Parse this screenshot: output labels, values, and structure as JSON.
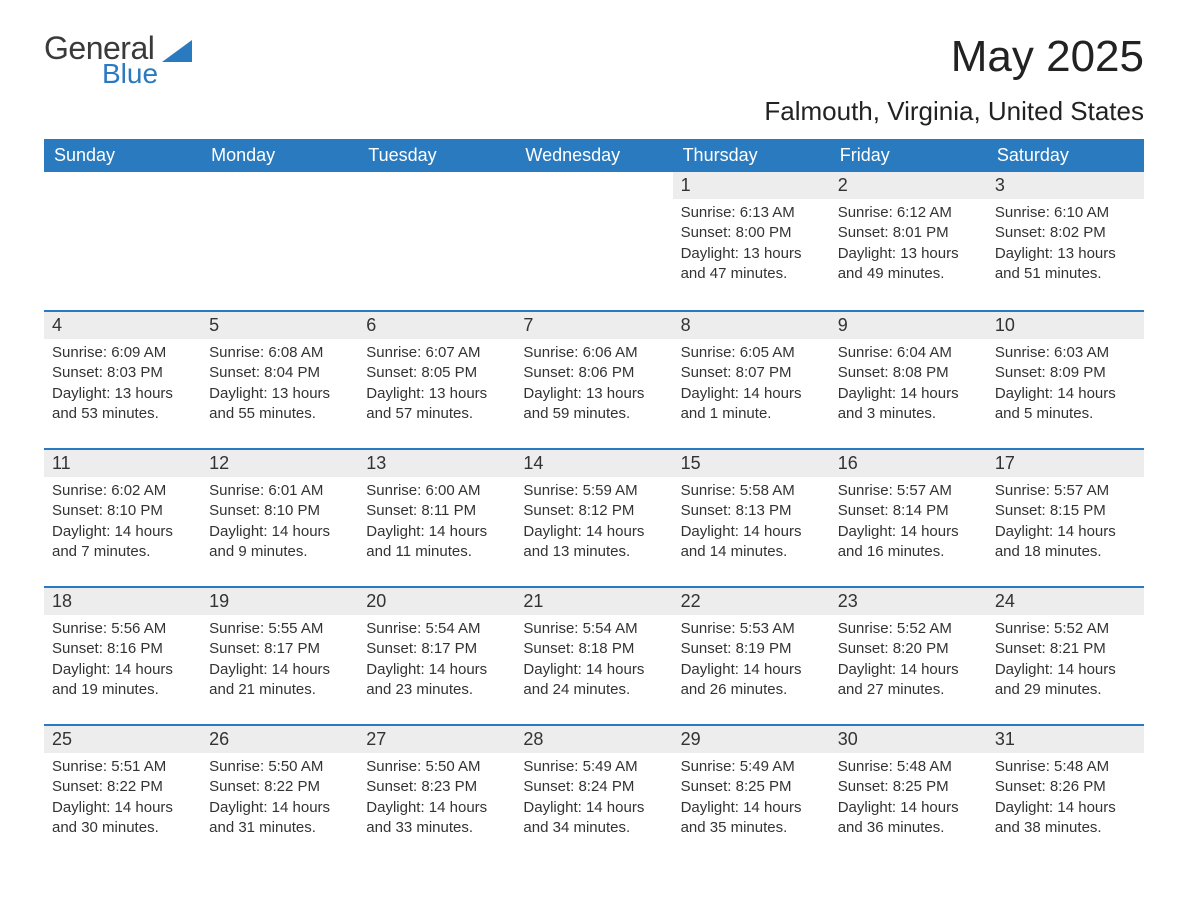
{
  "logo": {
    "word1": "General",
    "word2": "Blue"
  },
  "title": "May 2025",
  "location": "Falmouth, Virginia, United States",
  "colors": {
    "header_bg": "#2a7abf",
    "header_text": "#ffffff",
    "daynum_bg": "#ededed",
    "border_top": "#2a7abf",
    "body_bg": "#ffffff",
    "text": "#333333",
    "logo_gray": "#3a3a3a",
    "logo_blue": "#2a7abf"
  },
  "typography": {
    "title_fontsize": 44,
    "location_fontsize": 26,
    "header_fontsize": 18,
    "daynum_fontsize": 18,
    "body_fontsize": 15,
    "font_family": "Arial"
  },
  "layout": {
    "columns": 7,
    "rows": 5,
    "first_day_column": 4
  },
  "weekdays": [
    "Sunday",
    "Monday",
    "Tuesday",
    "Wednesday",
    "Thursday",
    "Friday",
    "Saturday"
  ],
  "days": [
    null,
    null,
    null,
    null,
    {
      "n": "1",
      "sunrise": "Sunrise: 6:13 AM",
      "sunset": "Sunset: 8:00 PM",
      "daylight": "Daylight: 13 hours and 47 minutes."
    },
    {
      "n": "2",
      "sunrise": "Sunrise: 6:12 AM",
      "sunset": "Sunset: 8:01 PM",
      "daylight": "Daylight: 13 hours and 49 minutes."
    },
    {
      "n": "3",
      "sunrise": "Sunrise: 6:10 AM",
      "sunset": "Sunset: 8:02 PM",
      "daylight": "Daylight: 13 hours and 51 minutes."
    },
    {
      "n": "4",
      "sunrise": "Sunrise: 6:09 AM",
      "sunset": "Sunset: 8:03 PM",
      "daylight": "Daylight: 13 hours and 53 minutes."
    },
    {
      "n": "5",
      "sunrise": "Sunrise: 6:08 AM",
      "sunset": "Sunset: 8:04 PM",
      "daylight": "Daylight: 13 hours and 55 minutes."
    },
    {
      "n": "6",
      "sunrise": "Sunrise: 6:07 AM",
      "sunset": "Sunset: 8:05 PM",
      "daylight": "Daylight: 13 hours and 57 minutes."
    },
    {
      "n": "7",
      "sunrise": "Sunrise: 6:06 AM",
      "sunset": "Sunset: 8:06 PM",
      "daylight": "Daylight: 13 hours and 59 minutes."
    },
    {
      "n": "8",
      "sunrise": "Sunrise: 6:05 AM",
      "sunset": "Sunset: 8:07 PM",
      "daylight": "Daylight: 14 hours and 1 minute."
    },
    {
      "n": "9",
      "sunrise": "Sunrise: 6:04 AM",
      "sunset": "Sunset: 8:08 PM",
      "daylight": "Daylight: 14 hours and 3 minutes."
    },
    {
      "n": "10",
      "sunrise": "Sunrise: 6:03 AM",
      "sunset": "Sunset: 8:09 PM",
      "daylight": "Daylight: 14 hours and 5 minutes."
    },
    {
      "n": "11",
      "sunrise": "Sunrise: 6:02 AM",
      "sunset": "Sunset: 8:10 PM",
      "daylight": "Daylight: 14 hours and 7 minutes."
    },
    {
      "n": "12",
      "sunrise": "Sunrise: 6:01 AM",
      "sunset": "Sunset: 8:10 PM",
      "daylight": "Daylight: 14 hours and 9 minutes."
    },
    {
      "n": "13",
      "sunrise": "Sunrise: 6:00 AM",
      "sunset": "Sunset: 8:11 PM",
      "daylight": "Daylight: 14 hours and 11 minutes."
    },
    {
      "n": "14",
      "sunrise": "Sunrise: 5:59 AM",
      "sunset": "Sunset: 8:12 PM",
      "daylight": "Daylight: 14 hours and 13 minutes."
    },
    {
      "n": "15",
      "sunrise": "Sunrise: 5:58 AM",
      "sunset": "Sunset: 8:13 PM",
      "daylight": "Daylight: 14 hours and 14 minutes."
    },
    {
      "n": "16",
      "sunrise": "Sunrise: 5:57 AM",
      "sunset": "Sunset: 8:14 PM",
      "daylight": "Daylight: 14 hours and 16 minutes."
    },
    {
      "n": "17",
      "sunrise": "Sunrise: 5:57 AM",
      "sunset": "Sunset: 8:15 PM",
      "daylight": "Daylight: 14 hours and 18 minutes."
    },
    {
      "n": "18",
      "sunrise": "Sunrise: 5:56 AM",
      "sunset": "Sunset: 8:16 PM",
      "daylight": "Daylight: 14 hours and 19 minutes."
    },
    {
      "n": "19",
      "sunrise": "Sunrise: 5:55 AM",
      "sunset": "Sunset: 8:17 PM",
      "daylight": "Daylight: 14 hours and 21 minutes."
    },
    {
      "n": "20",
      "sunrise": "Sunrise: 5:54 AM",
      "sunset": "Sunset: 8:17 PM",
      "daylight": "Daylight: 14 hours and 23 minutes."
    },
    {
      "n": "21",
      "sunrise": "Sunrise: 5:54 AM",
      "sunset": "Sunset: 8:18 PM",
      "daylight": "Daylight: 14 hours and 24 minutes."
    },
    {
      "n": "22",
      "sunrise": "Sunrise: 5:53 AM",
      "sunset": "Sunset: 8:19 PM",
      "daylight": "Daylight: 14 hours and 26 minutes."
    },
    {
      "n": "23",
      "sunrise": "Sunrise: 5:52 AM",
      "sunset": "Sunset: 8:20 PM",
      "daylight": "Daylight: 14 hours and 27 minutes."
    },
    {
      "n": "24",
      "sunrise": "Sunrise: 5:52 AM",
      "sunset": "Sunset: 8:21 PM",
      "daylight": "Daylight: 14 hours and 29 minutes."
    },
    {
      "n": "25",
      "sunrise": "Sunrise: 5:51 AM",
      "sunset": "Sunset: 8:22 PM",
      "daylight": "Daylight: 14 hours and 30 minutes."
    },
    {
      "n": "26",
      "sunrise": "Sunrise: 5:50 AM",
      "sunset": "Sunset: 8:22 PM",
      "daylight": "Daylight: 14 hours and 31 minutes."
    },
    {
      "n": "27",
      "sunrise": "Sunrise: 5:50 AM",
      "sunset": "Sunset: 8:23 PM",
      "daylight": "Daylight: 14 hours and 33 minutes."
    },
    {
      "n": "28",
      "sunrise": "Sunrise: 5:49 AM",
      "sunset": "Sunset: 8:24 PM",
      "daylight": "Daylight: 14 hours and 34 minutes."
    },
    {
      "n": "29",
      "sunrise": "Sunrise: 5:49 AM",
      "sunset": "Sunset: 8:25 PM",
      "daylight": "Daylight: 14 hours and 35 minutes."
    },
    {
      "n": "30",
      "sunrise": "Sunrise: 5:48 AM",
      "sunset": "Sunset: 8:25 PM",
      "daylight": "Daylight: 14 hours and 36 minutes."
    },
    {
      "n": "31",
      "sunrise": "Sunrise: 5:48 AM",
      "sunset": "Sunset: 8:26 PM",
      "daylight": "Daylight: 14 hours and 38 minutes."
    }
  ]
}
